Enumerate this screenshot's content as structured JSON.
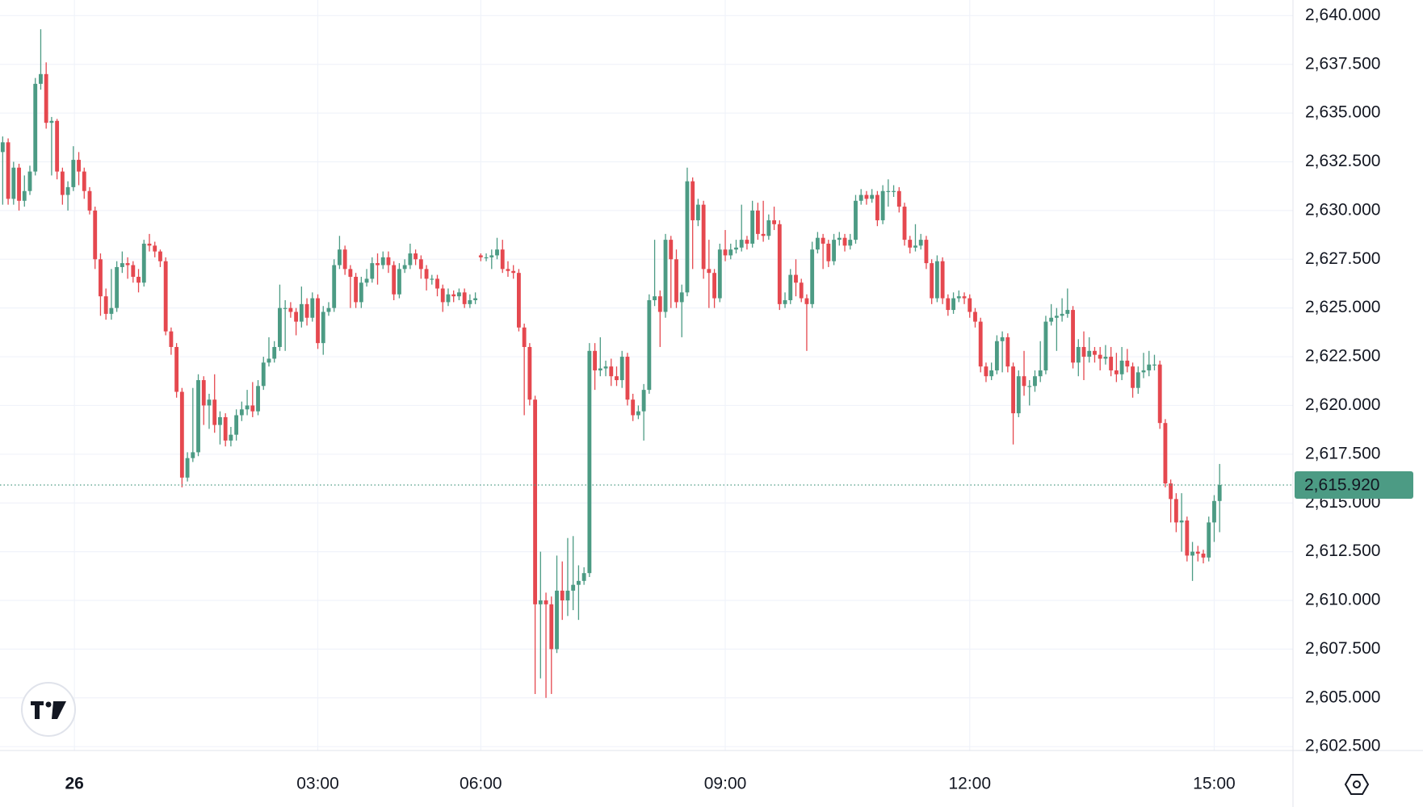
{
  "chart_data": {
    "type": "candlestick",
    "up_color": "#4c9b84",
    "down_color": "#e5484f",
    "grid": true,
    "xlim": [
      -0.5,
      237.5
    ],
    "xticks": [
      {
        "value": 13.2,
        "label": "26"
      },
      {
        "value": 58,
        "label": "03:00"
      },
      {
        "value": 88,
        "label": "06:00"
      },
      {
        "value": 133,
        "label": "09:00"
      },
      {
        "value": 178,
        "label": "12:00"
      },
      {
        "value": 223,
        "label": "15:00"
      }
    ],
    "ylim": [
      2602.3,
      2640.8
    ],
    "yticks": [
      {
        "value": 2602.5,
        "label": "2,602.500"
      },
      {
        "value": 2605,
        "label": "2,605.000"
      },
      {
        "value": 2607.5,
        "label": "2,607.500"
      },
      {
        "value": 2610,
        "label": "2,610.000"
      },
      {
        "value": 2612.5,
        "label": "2,612.500"
      },
      {
        "value": 2615,
        "label": "2,615.000"
      },
      {
        "value": 2617.5,
        "label": "2,617.500"
      },
      {
        "value": 2620,
        "label": "2,620.000"
      },
      {
        "value": 2622.5,
        "label": "2,622.500"
      },
      {
        "value": 2625,
        "label": "2,625.000"
      },
      {
        "value": 2627.5,
        "label": "2,627.500"
      },
      {
        "value": 2630,
        "label": "2,630.000"
      },
      {
        "value": 2632.5,
        "label": "2,632.500"
      },
      {
        "value": 2635,
        "label": "2,635.000"
      },
      {
        "value": 2637.5,
        "label": "2,637.500"
      },
      {
        "value": 2640,
        "label": "2,640.000"
      }
    ],
    "last_price": {
      "value": 2615.92,
      "label": "2,615.920"
    },
    "open": [
      2633.0,
      2633.5,
      2630.6,
      2632.2,
      2630.5,
      2631.0,
      2632.0,
      2636.5,
      2637.0,
      2634.5,
      2634.6,
      2632.0,
      2630.8,
      2631.2,
      2632.6,
      2632.0,
      2631.0,
      2630.0,
      2627.5,
      2625.6,
      2624.7,
      2625.0,
      2627.1,
      2627.3,
      2627.2,
      2626.6,
      2626.3,
      2628.3,
      2628.2,
      2627.9,
      2627.4,
      2623.8,
      2623.0,
      2620.7,
      2616.3,
      2617.3,
      2617.6,
      2621.3,
      2620.0,
      2620.3,
      2619.0,
      2619.4,
      2618.2,
      2618.5,
      2619.5,
      2619.8,
      2620.0,
      2619.7,
      2621.0,
      2622.2,
      2622.4,
      2623.0,
      2625.0,
      2625.0,
      2624.8,
      2624.3,
      2625.2,
      2624.5,
      2625.5,
      2623.2,
      2624.8,
      2625.0,
      2627.2,
      2628.0,
      2627.0,
      2626.6,
      2625.3,
      2626.3,
      2626.5,
      2627.3,
      2627.2,
      2627.6,
      2627.2,
      2625.7,
      2627.0,
      2627.2,
      2627.8,
      2627.5,
      2627.0,
      2626.5,
      2626.5,
      2626.0,
      2625.3,
      2625.7,
      2625.6,
      2625.8,
      2625.2,
      2625.4,
      2627.7,
      2627.6,
      2627.6,
      2627.7,
      2628.0,
      2627.0,
      2626.9,
      2626.8,
      2624.0,
      2623.0,
      2620.3,
      2609.8,
      2610.0,
      2609.8,
      2607.5,
      2610.5,
      2610.0,
      2610.5,
      2610.8,
      2611.0,
      2611.4,
      2622.8,
      2621.8,
      2621.9,
      2622.0,
      2621.5,
      2621.3,
      2622.5,
      2620.3,
      2619.5,
      2619.7,
      2620.8,
      2625.4,
      2625.6,
      2624.8,
      2628.5,
      2627.5,
      2625.3,
      2625.8,
      2631.5,
      2629.5,
      2630.3,
      2627.0,
      2626.8,
      2625.5,
      2628.0,
      2627.7,
      2628.0,
      2628.1,
      2628.5,
      2628.3,
      2630.0,
      2628.8,
      2628.7,
      2629.5,
      2629.3,
      2625.2,
      2625.4,
      2626.7,
      2626.3,
      2625.5,
      2625.2,
      2628.0,
      2628.6,
      2628.3,
      2627.4,
      2628.5,
      2628.6,
      2628.2,
      2628.5,
      2630.5,
      2630.8,
      2630.6,
      2630.8,
      2629.5,
      2631.0,
      2631.0,
      2631.0,
      2630.2,
      2628.5,
      2628.1,
      2628.2,
      2628.5,
      2627.3,
      2625.5,
      2627.4,
      2625.5,
      2624.9,
      2625.5,
      2625.6,
      2625.5,
      2624.8,
      2624.3,
      2622.0,
      2621.5,
      2621.8,
      2623.3,
      2623.5,
      2622.0,
      2619.6,
      2621.5,
      2621.0,
      2621.0,
      2621.5,
      2621.8,
      2624.3,
      2624.5,
      2624.6,
      2624.7,
      2624.9,
      2622.2,
      2623.0,
      2622.5,
      2622.8,
      2622.6,
      2622.4,
      2622.5,
      2621.8,
      2621.6,
      2622.3,
      2622.0,
      2620.9,
      2621.7,
      2621.8,
      2622.1,
      2622.1,
      2619.1,
      2616.0,
      2615.2,
      2614.0,
      2614.1,
      2612.3,
      2612.5,
      2612.4,
      2612.2,
      2614.0,
      2615.1
    ],
    "high": [
      2633.8,
      2633.7,
      2632.5,
      2632.4,
      2631.8,
      2632.3,
      2636.8,
      2639.3,
      2637.6,
      2634.8,
      2634.7,
      2632.2,
      2631.5,
      2633.3,
      2633.0,
      2632.2,
      2631.2,
      2630.2,
      2627.8,
      2626.0,
      2627.0,
      2627.4,
      2627.9,
      2627.6,
      2627.4,
      2627.0,
      2628.5,
      2628.8,
      2628.4,
      2628.0,
      2627.6,
      2624.0,
      2623.2,
      2620.9,
      2617.6,
      2620.9,
      2621.6,
      2621.5,
      2620.6,
      2621.6,
      2619.7,
      2619.6,
      2618.9,
      2619.8,
      2620.2,
      2620.8,
      2621.2,
      2621.3,
      2622.5,
      2623.5,
      2623.3,
      2626.2,
      2625.4,
      2625.3,
      2625.0,
      2626.1,
      2625.5,
      2625.8,
      2625.7,
      2625.1,
      2625.3,
      2627.5,
      2628.7,
      2628.2,
      2627.2,
      2626.8,
      2626.6,
      2627.0,
      2627.6,
      2627.8,
      2627.9,
      2627.9,
      2627.4,
      2627.3,
      2627.5,
      2628.3,
      2628.0,
      2627.7,
      2627.2,
      2626.7,
      2626.7,
      2626.2,
      2626.0,
      2625.9,
      2626.0,
      2626.0,
      2625.7,
      2625.8,
      2627.8,
      2627.8,
      2628.0,
      2628.6,
      2628.5,
      2627.4,
      2627.2,
      2627.0,
      2624.2,
      2623.2,
      2620.5,
      2612.5,
      2610.4,
      2610.2,
      2612.3,
      2612.0,
      2613.2,
      2613.3,
      2611.8,
      2611.7,
      2623.2,
      2623.2,
      2623.5,
      2622.3,
      2622.4,
      2622.0,
      2622.8,
      2622.7,
      2620.6,
      2620.0,
      2621.1,
      2625.7,
      2628.5,
      2625.9,
      2628.8,
      2628.7,
      2628.0,
      2626.2,
      2632.2,
      2631.7,
      2630.6,
      2630.5,
      2628.5,
      2627.0,
      2628.3,
      2629.0,
      2628.3,
      2628.5,
      2630.3,
      2628.7,
      2630.5,
      2630.4,
      2630.5,
      2629.8,
      2630.2,
      2629.5,
      2625.8,
      2627.0,
      2627.5,
      2626.5,
      2625.7,
      2628.4,
      2628.9,
      2628.8,
      2628.5,
      2628.8,
      2628.9,
      2628.8,
      2628.8,
      2630.8,
      2631.1,
      2631.0,
      2631.1,
      2631.0,
      2631.3,
      2631.6,
      2631.3,
      2631.2,
      2630.4,
      2628.7,
      2629.3,
      2628.8,
      2628.7,
      2627.5,
      2627.7,
      2627.6,
      2625.7,
      2625.8,
      2625.9,
      2625.8,
      2625.7,
      2625.0,
      2624.5,
      2622.2,
      2622.2,
      2623.6,
      2623.8,
      2623.7,
      2622.2,
      2621.8,
      2622.8,
      2621.3,
      2621.8,
      2623.3,
      2624.6,
      2625.2,
      2625.0,
      2625.5,
      2626.0,
      2625.1,
      2623.4,
      2623.8,
      2623.5,
      2623.0,
      2623.0,
      2623.1,
      2623.0,
      2622.7,
      2623.0,
      2622.9,
      2622.2,
      2622.0,
      2622.7,
      2622.8,
      2622.6,
      2622.3,
      2619.3,
      2616.2,
      2615.5,
      2615.5,
      2614.3,
      2613.0,
      2612.8,
      2612.6,
      2614.3,
      2615.4,
      2617.0
    ],
    "low": [
      2630.3,
      2630.3,
      2630.3,
      2630.0,
      2630.2,
      2630.8,
      2631.8,
      2636.2,
      2634.2,
      2631.8,
      2631.6,
      2630.3,
      2630.0,
      2631.0,
      2631.3,
      2630.6,
      2629.8,
      2627.0,
      2624.6,
      2624.4,
      2624.4,
      2624.8,
      2626.8,
      2626.5,
      2626.3,
      2625.8,
      2626.1,
      2627.9,
      2627.6,
      2627.1,
      2623.6,
      2622.6,
      2620.4,
      2615.8,
      2616.1,
      2617.1,
      2617.4,
      2619.0,
      2618.8,
      2618.6,
      2618.0,
      2617.9,
      2617.9,
      2618.2,
      2619.2,
      2619.5,
      2619.4,
      2619.5,
      2620.8,
      2622.0,
      2622.2,
      2622.8,
      2622.8,
      2624.5,
      2623.6,
      2624.0,
      2624.1,
      2624.3,
      2622.9,
      2622.6,
      2624.6,
      2624.8,
      2627.0,
      2626.7,
      2625.0,
      2625.0,
      2625.0,
      2626.1,
      2626.3,
      2626.2,
      2627.0,
      2626.8,
      2625.4,
      2625.5,
      2626.8,
      2627.0,
      2627.2,
      2626.5,
      2625.9,
      2626.2,
      2625.6,
      2624.8,
      2625.1,
      2625.3,
      2625.4,
      2625.0,
      2625.0,
      2625.2,
      2627.4,
      2627.4,
      2627.0,
      2627.5,
      2626.8,
      2626.6,
      2626.5,
      2623.8,
      2619.5,
      2620.0,
      2605.2,
      2606.0,
      2605.0,
      2605.2,
      2607.3,
      2609.0,
      2609.2,
      2609.5,
      2609.0,
      2610.8,
      2611.2,
      2620.8,
      2621.5,
      2621.5,
      2621.0,
      2621.0,
      2620.9,
      2620.0,
      2619.2,
      2619.3,
      2618.2,
      2620.6,
      2625.1,
      2623.0,
      2624.5,
      2625.0,
      2625.0,
      2623.5,
      2625.6,
      2627.0,
      2629.2,
      2626.5,
      2625.0,
      2625.0,
      2625.3,
      2627.4,
      2627.5,
      2627.8,
      2627.9,
      2628.0,
      2628.1,
      2628.5,
      2628.4,
      2628.5,
      2629.0,
      2624.9,
      2625.0,
      2625.2,
      2625.6,
      2625.3,
      2622.8,
      2625.0,
      2627.8,
      2627.0,
      2627.1,
      2627.2,
      2628.2,
      2627.9,
      2628.0,
      2628.3,
      2630.3,
      2630.3,
      2630.4,
      2629.2,
      2629.3,
      2630.2,
      2630.7,
      2629.9,
      2628.2,
      2627.8,
      2627.9,
      2628.0,
      2627.0,
      2625.2,
      2625.3,
      2625.2,
      2624.6,
      2624.7,
      2625.3,
      2625.2,
      2624.5,
      2624.0,
      2621.7,
      2621.2,
      2621.3,
      2621.6,
      2621.7,
      2621.7,
      2618.0,
      2619.4,
      2620.5,
      2620.0,
      2620.7,
      2621.2,
      2621.6,
      2624.1,
      2622.8,
      2624.3,
      2624.5,
      2621.9,
      2621.5,
      2621.3,
      2622.2,
      2622.2,
      2621.8,
      2622.1,
      2621.5,
      2621.2,
      2621.3,
      2621.7,
      2620.4,
      2620.6,
      2621.4,
      2621.5,
      2621.8,
      2618.8,
      2615.8,
      2614.0,
      2613.5,
      2612.5,
      2612.0,
      2611.0,
      2612.0,
      2611.9,
      2612.0,
      2613.0,
      2613.5
    ],
    "close": [
      2633.5,
      2630.6,
      2632.2,
      2630.5,
      2631.0,
      2632.0,
      2636.5,
      2637.0,
      2634.5,
      2634.6,
      2632.0,
      2630.8,
      2631.2,
      2632.6,
      2632.0,
      2631.0,
      2630.0,
      2627.5,
      2625.6,
      2624.7,
      2625.0,
      2627.1,
      2627.3,
      2627.2,
      2626.6,
      2626.3,
      2628.3,
      2628.2,
      2627.9,
      2627.4,
      2623.8,
      2623.0,
      2620.7,
      2616.3,
      2617.3,
      2617.6,
      2621.3,
      2620.0,
      2620.3,
      2619.0,
      2619.4,
      2618.2,
      2618.5,
      2619.5,
      2619.8,
      2620.0,
      2619.7,
      2621.0,
      2622.2,
      2622.4,
      2623.0,
      2625.0,
      2625.0,
      2624.8,
      2624.3,
      2625.2,
      2624.5,
      2625.5,
      2623.2,
      2624.8,
      2625.0,
      2627.2,
      2628.0,
      2627.0,
      2626.6,
      2625.3,
      2626.3,
      2626.5,
      2627.3,
      2627.2,
      2627.6,
      2627.2,
      2625.7,
      2627.0,
      2627.2,
      2627.8,
      2627.5,
      2627.0,
      2626.5,
      2626.5,
      2626.0,
      2625.3,
      2625.7,
      2625.6,
      2625.8,
      2625.2,
      2625.4,
      2625.5,
      2627.6,
      2627.6,
      2627.7,
      2628.0,
      2627.0,
      2626.9,
      2626.8,
      2624.0,
      2623.0,
      2620.3,
      2609.8,
      2610.0,
      2609.8,
      2607.5,
      2610.5,
      2610.0,
      2610.5,
      2610.8,
      2611.0,
      2611.4,
      2622.8,
      2621.8,
      2621.9,
      2622.0,
      2621.5,
      2621.3,
      2622.5,
      2620.3,
      2619.5,
      2619.7,
      2620.8,
      2625.4,
      2625.6,
      2624.8,
      2628.5,
      2627.5,
      2625.3,
      2625.8,
      2631.5,
      2629.5,
      2630.3,
      2627.0,
      2626.8,
      2625.5,
      2628.0,
      2627.7,
      2628.0,
      2628.1,
      2628.5,
      2628.3,
      2630.0,
      2628.8,
      2628.7,
      2629.5,
      2629.3,
      2625.2,
      2625.4,
      2626.7,
      2626.3,
      2625.5,
      2625.2,
      2628.0,
      2628.6,
      2628.3,
      2627.4,
      2628.5,
      2628.6,
      2628.2,
      2628.5,
      2630.5,
      2630.8,
      2630.6,
      2630.8,
      2629.5,
      2631.0,
      2631.0,
      2631.0,
      2630.2,
      2628.5,
      2628.1,
      2628.2,
      2628.5,
      2627.3,
      2625.5,
      2627.4,
      2625.5,
      2624.9,
      2625.5,
      2625.6,
      2625.5,
      2624.8,
      2624.3,
      2622.0,
      2621.5,
      2621.8,
      2623.3,
      2623.5,
      2622.0,
      2619.6,
      2621.5,
      2621.0,
      2621.0,
      2621.5,
      2621.8,
      2624.3,
      2624.5,
      2624.6,
      2624.7,
      2624.9,
      2622.2,
      2623.0,
      2622.5,
      2622.8,
      2622.6,
      2622.4,
      2622.5,
      2621.8,
      2621.6,
      2622.3,
      2622.0,
      2620.9,
      2621.7,
      2621.8,
      2622.1,
      2622.1,
      2619.1,
      2616.0,
      2615.2,
      2614.0,
      2614.1,
      2612.3,
      2612.5,
      2612.4,
      2612.2,
      2614.0,
      2615.1,
      2615.92
    ]
  }
}
